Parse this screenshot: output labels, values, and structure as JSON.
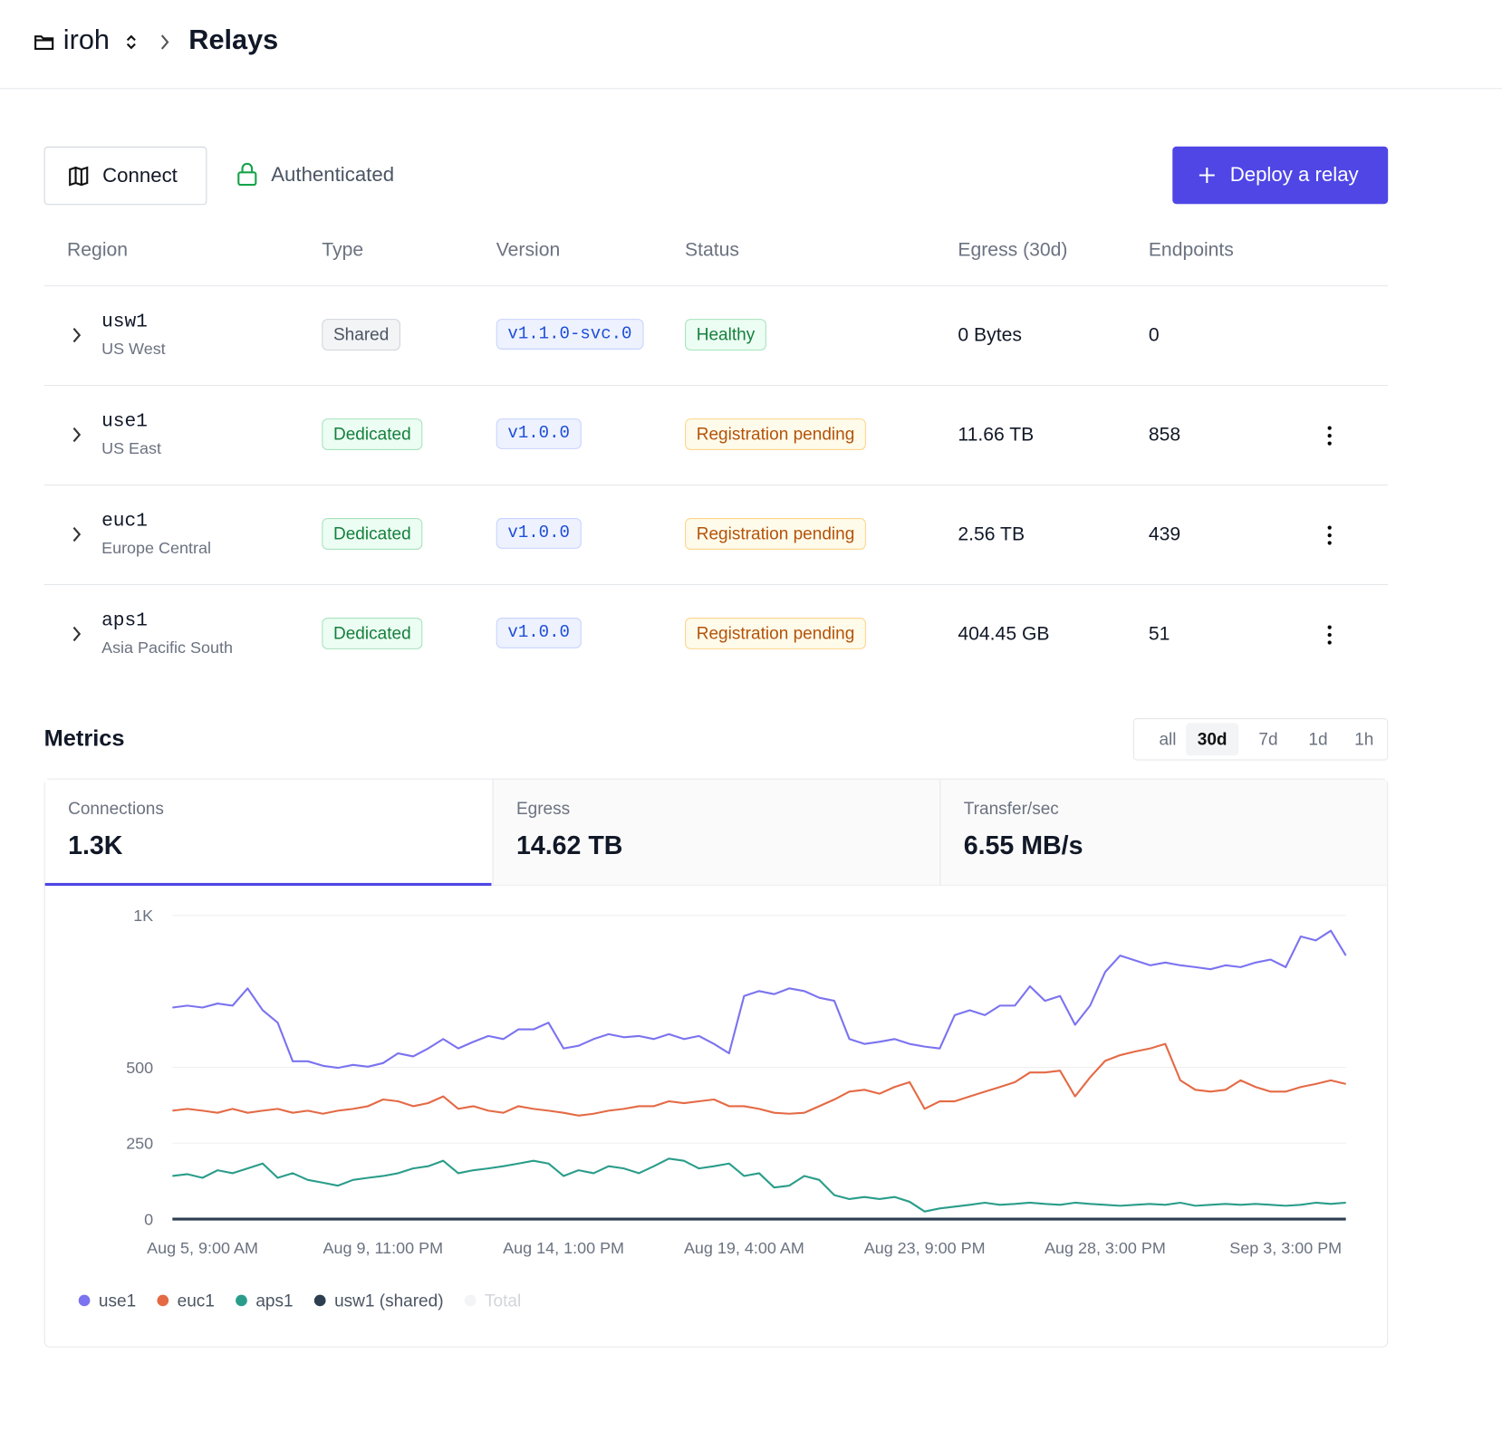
{
  "header": {
    "project": "iroh",
    "page": "Relays"
  },
  "toolbar": {
    "connect": "Connect",
    "auth": "Authenticated",
    "deploy": "Deploy a relay"
  },
  "table": {
    "columns": [
      "Region",
      "Type",
      "Version",
      "Status",
      "Egress (30d)",
      "Endpoints"
    ],
    "rows": [
      {
        "id": "usw1",
        "name": "US West",
        "type": "Shared",
        "version": "v1.1.0-svc.0",
        "status": "Healthy",
        "egress": "0 Bytes",
        "endpoints": 0
      },
      {
        "id": "use1",
        "name": "US East",
        "type": "Dedicated",
        "version": "v1.0.0",
        "status": "Registration pending",
        "egress": "11.66 TB",
        "endpoints": 858
      },
      {
        "id": "euc1",
        "name": "Europe Central",
        "type": "Dedicated",
        "version": "v1.0.0",
        "status": "Registration pending",
        "egress": "2.56 TB",
        "endpoints": 439
      },
      {
        "id": "aps1",
        "name": "Asia Pacific South",
        "type": "Dedicated",
        "version": "v1.0.0",
        "status": "Registration pending",
        "egress": "404.45 GB",
        "endpoints": 51
      }
    ]
  },
  "metrics": {
    "title": "Metrics",
    "ranges": [
      "all",
      "30d",
      "7d",
      "1d",
      "1h"
    ],
    "active_range": 1,
    "stats": [
      {
        "label": "Connections",
        "value": "1.3K"
      },
      {
        "label": "Egress",
        "value": "14.62 TB"
      },
      {
        "label": "Transfer/sec",
        "value": "6.55 MB/s"
      }
    ],
    "active_stat": 0
  },
  "chart_data": {
    "type": "line",
    "categories": [
      null,
      null,
      "Aug 5, 9:00 AM",
      null,
      null,
      null,
      null,
      null,
      null,
      null,
      null,
      null,
      null,
      null,
      "Aug 9, 11:00 PM",
      null,
      null,
      null,
      null,
      null,
      null,
      null,
      null,
      null,
      null,
      null,
      "Aug 14, 1:00 PM",
      null,
      null,
      null,
      null,
      null,
      null,
      null,
      null,
      null,
      null,
      null,
      "Aug 19, 4:00 AM",
      null,
      null,
      null,
      null,
      null,
      null,
      null,
      null,
      null,
      null,
      null,
      "Aug 23, 9:00 PM",
      null,
      null,
      null,
      null,
      null,
      null,
      null,
      null,
      null,
      null,
      null,
      "Aug 28, 3:00 PM",
      null,
      null,
      null,
      null,
      null,
      null,
      null,
      null,
      null,
      null,
      null,
      "Sep 3, 3:00 PM",
      null,
      null,
      null,
      null
    ],
    "ylim": [
      0,
      1000
    ],
    "yticks": [
      0,
      250,
      500,
      {
        "value": 1000,
        "label": "1K"
      }
    ],
    "grid": true,
    "series": [
      {
        "name": "use1",
        "color": "#7b73f0",
        "values": [
          697,
          703,
          697,
          710,
          703,
          760,
          688,
          647,
          520,
          520,
          505,
          498,
          508,
          502,
          514,
          546,
          536,
          562,
          593,
          562,
          584,
          603,
          593,
          625,
          625,
          647,
          562,
          571,
          593,
          609,
          599,
          603,
          593,
          609,
          593,
          603,
          577,
          546,
          735,
          751,
          741,
          760,
          751,
          729,
          719,
          593,
          577,
          584,
          593,
          577,
          568,
          562,
          672,
          688,
          672,
          703,
          703,
          767,
          719,
          735,
          640,
          703,
          814,
          868,
          852,
          836,
          845,
          836,
          830,
          823,
          836,
          830,
          845,
          855,
          830,
          931,
          918,
          950,
          868
        ]
      },
      {
        "name": "euc1",
        "color": "#e46a45",
        "values": [
          357,
          363,
          357,
          350,
          363,
          350,
          357,
          363,
          350,
          357,
          347,
          357,
          363,
          372,
          394,
          388,
          372,
          382,
          404,
          363,
          372,
          357,
          350,
          372,
          363,
          357,
          350,
          341,
          347,
          357,
          363,
          372,
          372,
          388,
          382,
          388,
          394,
          372,
          372,
          363,
          350,
          347,
          350,
          372,
          394,
          420,
          426,
          413,
          435,
          451,
          363,
          388,
          388,
          404,
          420,
          435,
          451,
          483,
          483,
          489,
          404,
          467,
          521,
          540,
          552,
          562,
          577,
          457,
          426,
          420,
          426,
          457,
          435,
          420,
          420,
          435,
          445,
          457,
          445
        ]
      },
      {
        "name": "aps1",
        "color": "#2a9d8a",
        "values": [
          142,
          148,
          136,
          161,
          151,
          167,
          183,
          136,
          151,
          129,
          120,
          110,
          129,
          136,
          142,
          151,
          167,
          174,
          192,
          151,
          161,
          167,
          174,
          183,
          192,
          183,
          142,
          161,
          151,
          174,
          167,
          151,
          174,
          199,
          192,
          167,
          174,
          183,
          142,
          151,
          104,
          110,
          142,
          129,
          79,
          66,
          73,
          66,
          73,
          57,
          25,
          35,
          41,
          47,
          54,
          47,
          50,
          54,
          50,
          47,
          54,
          50,
          47,
          44,
          47,
          50,
          47,
          54,
          44,
          47,
          50,
          47,
          50,
          47,
          44,
          47,
          54,
          50,
          54
        ]
      },
      {
        "name": "usw1 (shared)",
        "color": "#2c3e50",
        "values": [
          0,
          0,
          0,
          0,
          0,
          0,
          0,
          0,
          0,
          0,
          0,
          0,
          0,
          0,
          0,
          0,
          0,
          0,
          0,
          0,
          0,
          0,
          0,
          0,
          0,
          0,
          0,
          0,
          0,
          0,
          0,
          0,
          0,
          0,
          0,
          0,
          0,
          0,
          0,
          0,
          0,
          0,
          0,
          0,
          0,
          0,
          0,
          0,
          0,
          0,
          0,
          0,
          0,
          0,
          0,
          0,
          0,
          0,
          0,
          0,
          0,
          0,
          0,
          0,
          0,
          0,
          0,
          0,
          0,
          0,
          0,
          0,
          0,
          0,
          0,
          0,
          0,
          0,
          0
        ]
      }
    ],
    "legend_disabled": [
      {
        "name": "Total",
        "color": "#f3f4f6"
      }
    ]
  }
}
